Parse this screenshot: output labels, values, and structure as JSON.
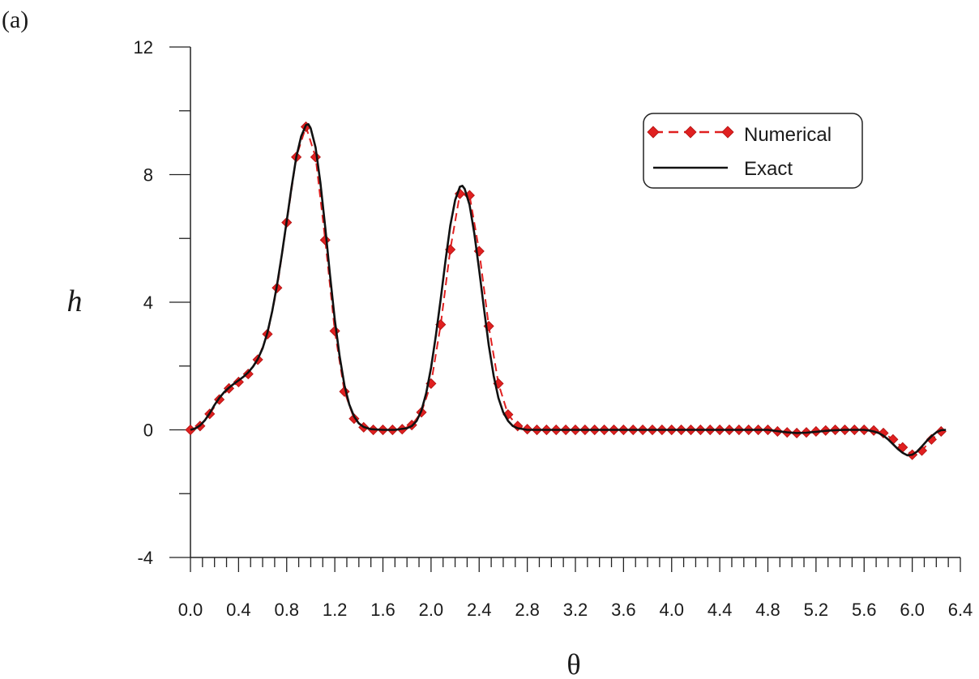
{
  "panel_label": "(a)",
  "colors": {
    "numerical": "#e02020",
    "exact": "#111111",
    "axis": "#222222"
  },
  "chart_data": {
    "type": "line",
    "title": "",
    "xlabel": "θ",
    "ylabel": "h",
    "xlim": [
      0,
      6.4
    ],
    "ylim": [
      -4,
      12
    ],
    "x_ticks": [
      "0.0",
      "0.4",
      "0.8",
      "1.2",
      "1.6",
      "2.0",
      "2.4",
      "2.8",
      "3.2",
      "3.6",
      "4.0",
      "4.4",
      "4.8",
      "5.2",
      "5.6",
      "6.0",
      "6.4"
    ],
    "y_ticks": [
      "-4",
      "0",
      "4",
      "8",
      "12"
    ],
    "grid": false,
    "legend_position": "top-right",
    "series": [
      {
        "name": "Numerical",
        "style": "dashed line with diamond markers",
        "x": [
          0.0,
          0.08,
          0.16,
          0.24,
          0.32,
          0.4,
          0.48,
          0.56,
          0.64,
          0.72,
          0.8,
          0.88,
          0.96,
          1.04,
          1.12,
          1.2,
          1.28,
          1.36,
          1.44,
          1.52,
          1.6,
          1.68,
          1.76,
          1.84,
          1.92,
          2.0,
          2.08,
          2.16,
          2.24,
          2.32,
          2.4,
          2.48,
          2.56,
          2.64,
          2.72,
          2.8,
          2.88,
          2.96,
          3.04,
          3.12,
          3.2,
          3.28,
          3.36,
          3.44,
          3.52,
          3.6,
          3.68,
          3.76,
          3.84,
          3.92,
          4.0,
          4.08,
          4.16,
          4.24,
          4.32,
          4.4,
          4.48,
          4.56,
          4.64,
          4.72,
          4.8,
          4.88,
          4.96,
          5.04,
          5.12,
          5.2,
          5.28,
          5.36,
          5.44,
          5.52,
          5.6,
          5.68,
          5.76,
          5.84,
          5.92,
          6.0,
          6.08,
          6.16,
          6.24
        ],
        "values": [
          0.0,
          0.12,
          0.5,
          0.95,
          1.3,
          1.5,
          1.75,
          2.2,
          3.0,
          4.45,
          6.5,
          8.55,
          9.5,
          8.55,
          5.95,
          3.1,
          1.2,
          0.35,
          0.08,
          0.0,
          0.0,
          0.0,
          0.02,
          0.15,
          0.55,
          1.45,
          3.3,
          5.65,
          7.4,
          7.35,
          5.6,
          3.25,
          1.45,
          0.48,
          0.12,
          0.02,
          0.0,
          0.0,
          0.0,
          0.0,
          0.0,
          0.0,
          0.0,
          0.0,
          0.0,
          0.0,
          0.0,
          0.0,
          0.0,
          0.0,
          0.0,
          0.0,
          0.0,
          0.0,
          0.0,
          0.0,
          0.0,
          0.0,
          0.0,
          0.0,
          0.0,
          -0.05,
          -0.08,
          -0.1,
          -0.08,
          -0.05,
          -0.02,
          0.0,
          0.0,
          0.0,
          0.0,
          -0.02,
          -0.1,
          -0.3,
          -0.55,
          -0.78,
          -0.65,
          -0.3,
          -0.05
        ]
      },
      {
        "name": "Exact",
        "style": "solid line",
        "x": [
          0.0,
          0.04,
          0.08,
          0.12,
          0.16,
          0.2,
          0.24,
          0.28,
          0.32,
          0.36,
          0.4,
          0.44,
          0.48,
          0.52,
          0.56,
          0.6,
          0.64,
          0.68,
          0.72,
          0.76,
          0.8,
          0.84,
          0.88,
          0.92,
          0.96,
          0.98,
          1.0,
          1.04,
          1.08,
          1.12,
          1.16,
          1.2,
          1.24,
          1.28,
          1.32,
          1.36,
          1.4,
          1.44,
          1.5,
          1.6,
          1.7,
          1.8,
          1.84,
          1.88,
          1.92,
          1.96,
          2.0,
          2.04,
          2.08,
          2.12,
          2.16,
          2.2,
          2.24,
          2.26,
          2.28,
          2.32,
          2.36,
          2.4,
          2.44,
          2.48,
          2.52,
          2.56,
          2.6,
          2.64,
          2.68,
          2.72,
          2.8,
          3.0,
          3.5,
          4.0,
          4.5,
          4.8,
          4.88,
          4.96,
          5.04,
          5.12,
          5.2,
          5.28,
          5.36,
          5.44,
          5.52,
          5.6,
          5.64,
          5.68,
          5.72,
          5.76,
          5.8,
          5.84,
          5.88,
          5.92,
          5.96,
          6.0,
          6.04,
          6.08,
          6.12,
          6.16,
          6.2,
          6.24,
          6.28
        ],
        "values": [
          0.0,
          0.04,
          0.14,
          0.3,
          0.52,
          0.78,
          1.0,
          1.18,
          1.32,
          1.44,
          1.55,
          1.66,
          1.8,
          1.98,
          2.22,
          2.56,
          3.05,
          3.72,
          4.55,
          5.5,
          6.55,
          7.6,
          8.55,
          9.2,
          9.55,
          9.58,
          9.45,
          8.85,
          7.75,
          6.35,
          4.85,
          3.45,
          2.3,
          1.4,
          0.8,
          0.42,
          0.2,
          0.09,
          0.02,
          0.0,
          0.0,
          0.05,
          0.12,
          0.28,
          0.6,
          1.15,
          1.95,
          2.95,
          4.1,
          5.3,
          6.4,
          7.2,
          7.62,
          7.65,
          7.55,
          7.05,
          6.15,
          5.0,
          3.8,
          2.65,
          1.7,
          1.0,
          0.55,
          0.28,
          0.12,
          0.05,
          0.0,
          0.0,
          0.0,
          0.0,
          0.0,
          0.0,
          -0.04,
          -0.08,
          -0.1,
          -0.09,
          -0.06,
          -0.03,
          -0.01,
          0.0,
          0.0,
          0.0,
          -0.02,
          -0.05,
          -0.1,
          -0.18,
          -0.3,
          -0.45,
          -0.6,
          -0.72,
          -0.8,
          -0.78,
          -0.68,
          -0.52,
          -0.35,
          -0.2,
          -0.08,
          -0.01,
          0.0
        ]
      }
    ]
  }
}
